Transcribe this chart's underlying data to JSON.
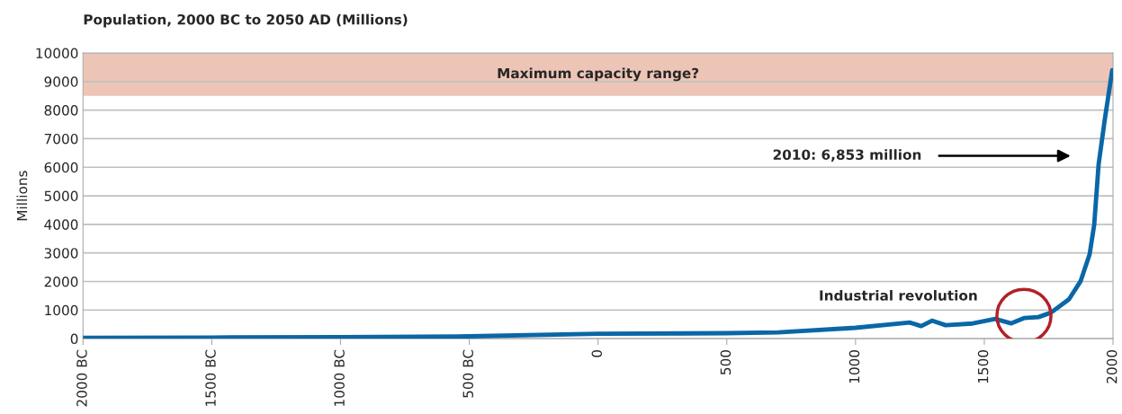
{
  "chart_data": {
    "type": "line",
    "title": "Population, 2000 BC to 2050 AD (Millions)",
    "ylabel": "Millions",
    "x": [
      -2000,
      -1500,
      -1000,
      -500,
      0,
      500,
      700,
      1000,
      1210,
      1255,
      1297,
      1350,
      1455,
      1542,
      1605,
      1654,
      1710,
      1759,
      1829,
      1874,
      1909,
      1927,
      1944,
      1968,
      1997
    ],
    "series": [
      {
        "color": "#0a67a6",
        "values": [
          30,
          40,
          50,
          80,
          170,
          190,
          220,
          380,
          566,
          440,
          630,
          470,
          530,
          690,
          535,
          720,
          755,
          910,
          1380,
          2010,
          2950,
          3990,
          6100,
          7670,
          9400
        ]
      }
    ],
    "xlim": [
      -2000,
      2000
    ],
    "xticks": [
      {
        "value": -2000,
        "label": "2000 BC"
      },
      {
        "value": -1500,
        "label": "1500 BC"
      },
      {
        "value": -1000,
        "label": "1000 BC"
      },
      {
        "value": -500,
        "label": "500 BC"
      },
      0,
      500,
      1000,
      1500,
      2000
    ],
    "ylim": [
      0,
      10000
    ],
    "yticks": [
      0,
      1000,
      2000,
      3000,
      4000,
      5000,
      6000,
      7000,
      8000,
      9000,
      10000
    ],
    "grid": "y",
    "legend": false,
    "marker": "none",
    "line_style": "solid",
    "bands": [
      {
        "axis": "y",
        "from": 8500,
        "to": 10000,
        "label": "Maximum capacity range?",
        "color": "#edc5b6"
      }
    ],
    "annotations": [
      "2010: 6,853 million",
      "Industrial revolution"
    ]
  }
}
